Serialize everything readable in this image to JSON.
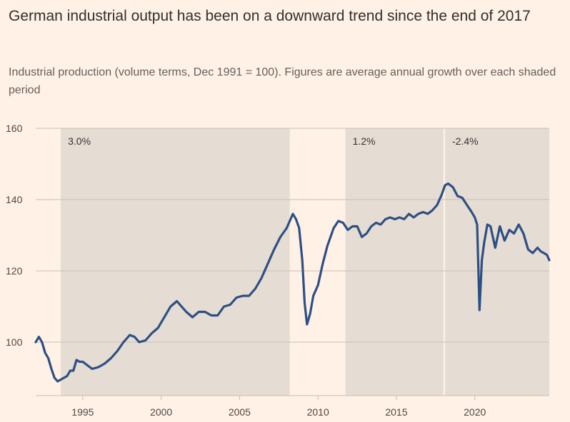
{
  "title": "German industrial output has been on a downward trend since the end of 2017",
  "subtitle": "Industrial production (volume terms, Dec 1991 = 100). Figures are average annual growth over each shaded period",
  "colors": {
    "background": "#fff1e5",
    "line": "#2e4f84",
    "shade": "#e5ddd3",
    "grid": "#c9beb3",
    "axis_text": "#4d4845",
    "label_text": "#33302e"
  },
  "chart_data": {
    "type": "line",
    "title": "German industrial output has been on a downward trend since the end of 2017",
    "subtitle": "Industrial production (volume terms, Dec 1991 = 100). Figures are average annual growth over each shaded period",
    "xlabel": "",
    "ylabel": "",
    "xlim": [
      1992.0,
      2024.75
    ],
    "ylim": [
      85,
      160
    ],
    "yticks": [
      100,
      120,
      140,
      160
    ],
    "xticks": [
      1995,
      2000,
      2005,
      2010,
      2015,
      2020
    ],
    "grid": true,
    "shaded_periods": [
      {
        "start": 1993.6,
        "end": 2008.2,
        "label": "3.0%"
      },
      {
        "start": 2011.75,
        "end": 2018.0,
        "label": "1.2%"
      },
      {
        "start": 2018.1,
        "end": 2024.75,
        "label": "-2.4%"
      }
    ],
    "series": [
      {
        "name": "Industrial production",
        "x": [
          1992.0,
          1992.2,
          1992.4,
          1992.6,
          1992.8,
          1993.0,
          1993.2,
          1993.4,
          1993.6,
          1993.8,
          1994.0,
          1994.2,
          1994.4,
          1994.6,
          1994.8,
          1995.0,
          1995.3,
          1995.6,
          1996.0,
          1996.4,
          1996.8,
          1997.2,
          1997.6,
          1998.0,
          1998.3,
          1998.6,
          1999.0,
          1999.4,
          1999.8,
          2000.2,
          2000.6,
          2001.0,
          2001.3,
          2001.6,
          2002.0,
          2002.4,
          2002.8,
          2003.2,
          2003.6,
          2004.0,
          2004.4,
          2004.8,
          2005.2,
          2005.6,
          2006.0,
          2006.4,
          2006.8,
          2007.2,
          2007.6,
          2008.0,
          2008.2,
          2008.4,
          2008.6,
          2008.8,
          2009.0,
          2009.15,
          2009.3,
          2009.5,
          2009.7,
          2010.0,
          2010.3,
          2010.6,
          2011.0,
          2011.3,
          2011.6,
          2011.9,
          2012.2,
          2012.5,
          2012.8,
          2013.1,
          2013.4,
          2013.7,
          2014.0,
          2014.3,
          2014.6,
          2014.9,
          2015.2,
          2015.5,
          2015.8,
          2016.1,
          2016.4,
          2016.7,
          2017.0,
          2017.3,
          2017.6,
          2017.9,
          2018.1,
          2018.3,
          2018.6,
          2018.9,
          2019.2,
          2019.5,
          2019.8,
          2020.0,
          2020.15,
          2020.3,
          2020.45,
          2020.6,
          2020.8,
          2021.0,
          2021.3,
          2021.6,
          2021.9,
          2022.2,
          2022.5,
          2022.8,
          2023.1,
          2023.4,
          2023.7,
          2024.0,
          2024.2,
          2024.4,
          2024.6,
          2024.75
        ],
        "values": [
          100,
          101.5,
          100,
          97,
          95.5,
          92.5,
          90,
          89,
          89.5,
          90,
          90.5,
          92,
          92,
          95,
          94.5,
          94.5,
          93.5,
          92.5,
          93,
          94,
          95.5,
          97.5,
          100,
          102,
          101.5,
          100,
          100.5,
          102.5,
          104,
          107,
          110,
          111.5,
          110,
          108.5,
          107,
          108.5,
          108.5,
          107.5,
          107.5,
          110,
          110.5,
          112.5,
          113,
          113,
          115,
          118,
          122,
          126,
          129.5,
          132,
          134,
          136,
          134.5,
          132,
          123,
          111,
          105,
          108,
          113,
          116,
          122,
          127,
          132,
          134,
          133.5,
          131.5,
          132.5,
          132.5,
          129.5,
          130.5,
          132.5,
          133.5,
          133,
          134.5,
          135,
          134.5,
          135,
          134.5,
          136,
          135,
          136,
          136.5,
          136,
          137,
          138.5,
          141.5,
          144,
          144.5,
          143.5,
          141,
          140.5,
          138.5,
          136.5,
          135,
          133,
          109,
          123,
          128,
          133,
          132.5,
          126.5,
          132.5,
          128.5,
          131.5,
          130.5,
          133,
          130.5,
          126,
          125,
          126.5,
          125.5,
          125,
          124.5,
          123
        ]
      }
    ]
  }
}
